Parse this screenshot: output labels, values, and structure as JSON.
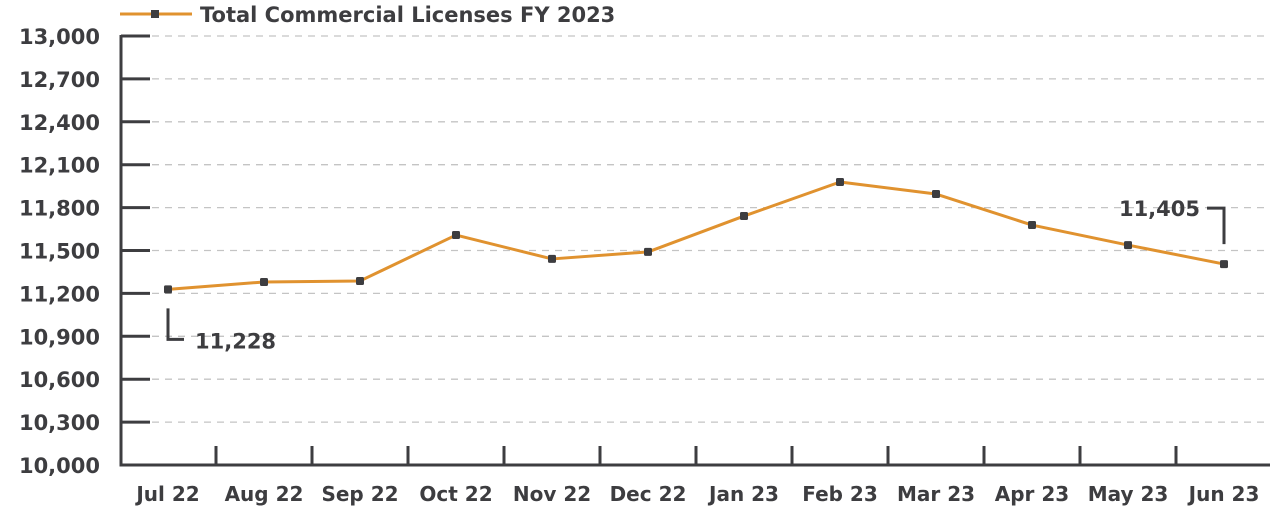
{
  "chart_data": {
    "type": "line",
    "title": "",
    "legend": {
      "label": "Total Commercial Licenses FY 2023",
      "placement": "top-left"
    },
    "xlabel": "",
    "ylabel": "",
    "categories": [
      "Jul 22",
      "Aug 22",
      "Sep 22",
      "Oct 22",
      "Nov 22",
      "Dec 22",
      "Jan 23",
      "Feb 23",
      "Mar 23",
      "Apr 23",
      "May 23",
      "Jun 23"
    ],
    "series": [
      {
        "name": "Total Commercial Licenses FY 2023",
        "values": [
          11228,
          11280,
          11287,
          11608,
          11441,
          11490,
          11741,
          11979,
          11895,
          11678,
          11538,
          11405
        ]
      }
    ],
    "ylim": [
      10000,
      13000
    ],
    "yticks": [
      10000,
      10300,
      10600,
      10900,
      11200,
      11500,
      11800,
      12100,
      12400,
      12700,
      13000
    ],
    "ytick_labels": [
      "10,000",
      "10,300",
      "10,600",
      "10,900",
      "11,200",
      "11,500",
      "11,800",
      "12,100",
      "12,400",
      "12,700",
      "13,000"
    ],
    "grid": true,
    "annotations": [
      {
        "category": "Jul 22",
        "text": "11,228"
      },
      {
        "category": "Jun 23",
        "text": "11,405"
      }
    ],
    "colors": {
      "line": "#e0922f",
      "marker": "#3d3d40",
      "axis": "#3d3d40",
      "grid": "#c4c4c4"
    }
  }
}
